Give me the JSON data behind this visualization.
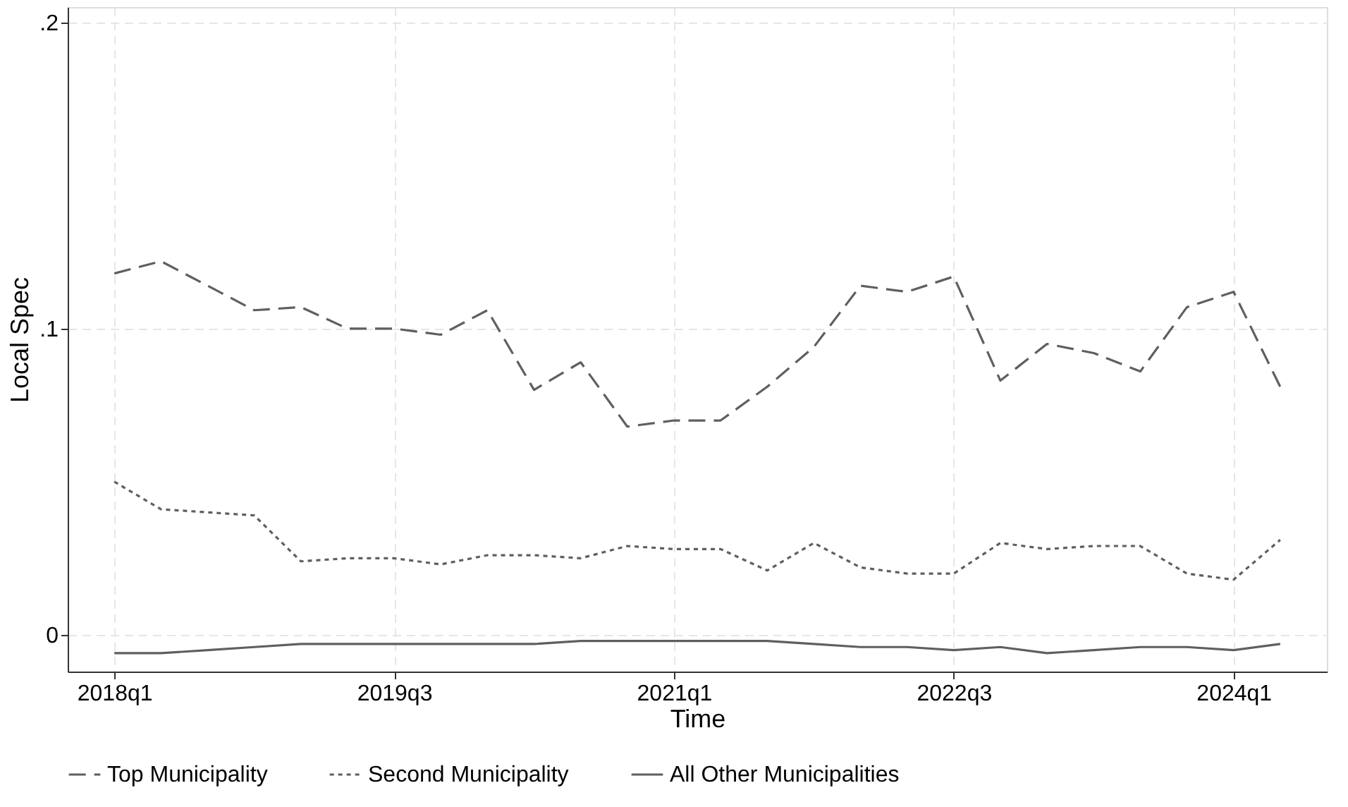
{
  "chart_data": {
    "type": "line",
    "xlabel": "Time",
    "ylabel": "Local Spec",
    "categories": [
      "2018q1",
      null,
      null,
      null,
      null,
      null,
      "2019q3",
      null,
      null,
      null,
      null,
      null,
      "2021q1",
      null,
      null,
      null,
      null,
      null,
      "2022q3",
      null,
      null,
      null,
      null,
      null,
      "2024q1",
      null
    ],
    "series": [
      {
        "name": "Top Municipality",
        "color": "#5f5f5f",
        "line_style": "dashed",
        "values": [
          0.118,
          0.122,
          0.114,
          0.106,
          0.107,
          0.1,
          0.1,
          0.098,
          0.106,
          0.08,
          0.089,
          0.068,
          0.07,
          0.07,
          0.081,
          0.094,
          0.114,
          0.112,
          0.117,
          0.083,
          0.095,
          0.092,
          0.086,
          0.107,
          0.112,
          0.081
        ]
      },
      {
        "name": "Second Municipality",
        "color": "#5f5f5f",
        "line_style": "dotted",
        "values": [
          0.05,
          0.041,
          0.04,
          0.039,
          0.024,
          0.025,
          0.025,
          0.023,
          0.026,
          0.026,
          0.025,
          0.029,
          0.028,
          0.028,
          0.021,
          0.03,
          0.022,
          0.02,
          0.02,
          0.03,
          0.028,
          0.029,
          0.029,
          0.02,
          0.018,
          0.031
        ]
      },
      {
        "name": "All Other Municipalities",
        "color": "#5f5f5f",
        "line_style": "solid",
        "values": [
          -0.006,
          -0.006,
          -0.005,
          -0.004,
          -0.003,
          -0.003,
          -0.003,
          -0.003,
          -0.003,
          -0.003,
          -0.002,
          -0.002,
          -0.002,
          -0.002,
          -0.002,
          -0.003,
          -0.004,
          -0.004,
          -0.005,
          -0.004,
          -0.006,
          -0.005,
          -0.004,
          -0.004,
          -0.005,
          -0.003
        ]
      }
    ],
    "ylim": [
      -0.012,
      0.205
    ],
    "yticks": [
      0,
      {
        "value": 0.1,
        "label": ".1"
      },
      {
        "value": 0.2,
        "label": ".2"
      }
    ],
    "grid": true,
    "legend": "bottom"
  }
}
